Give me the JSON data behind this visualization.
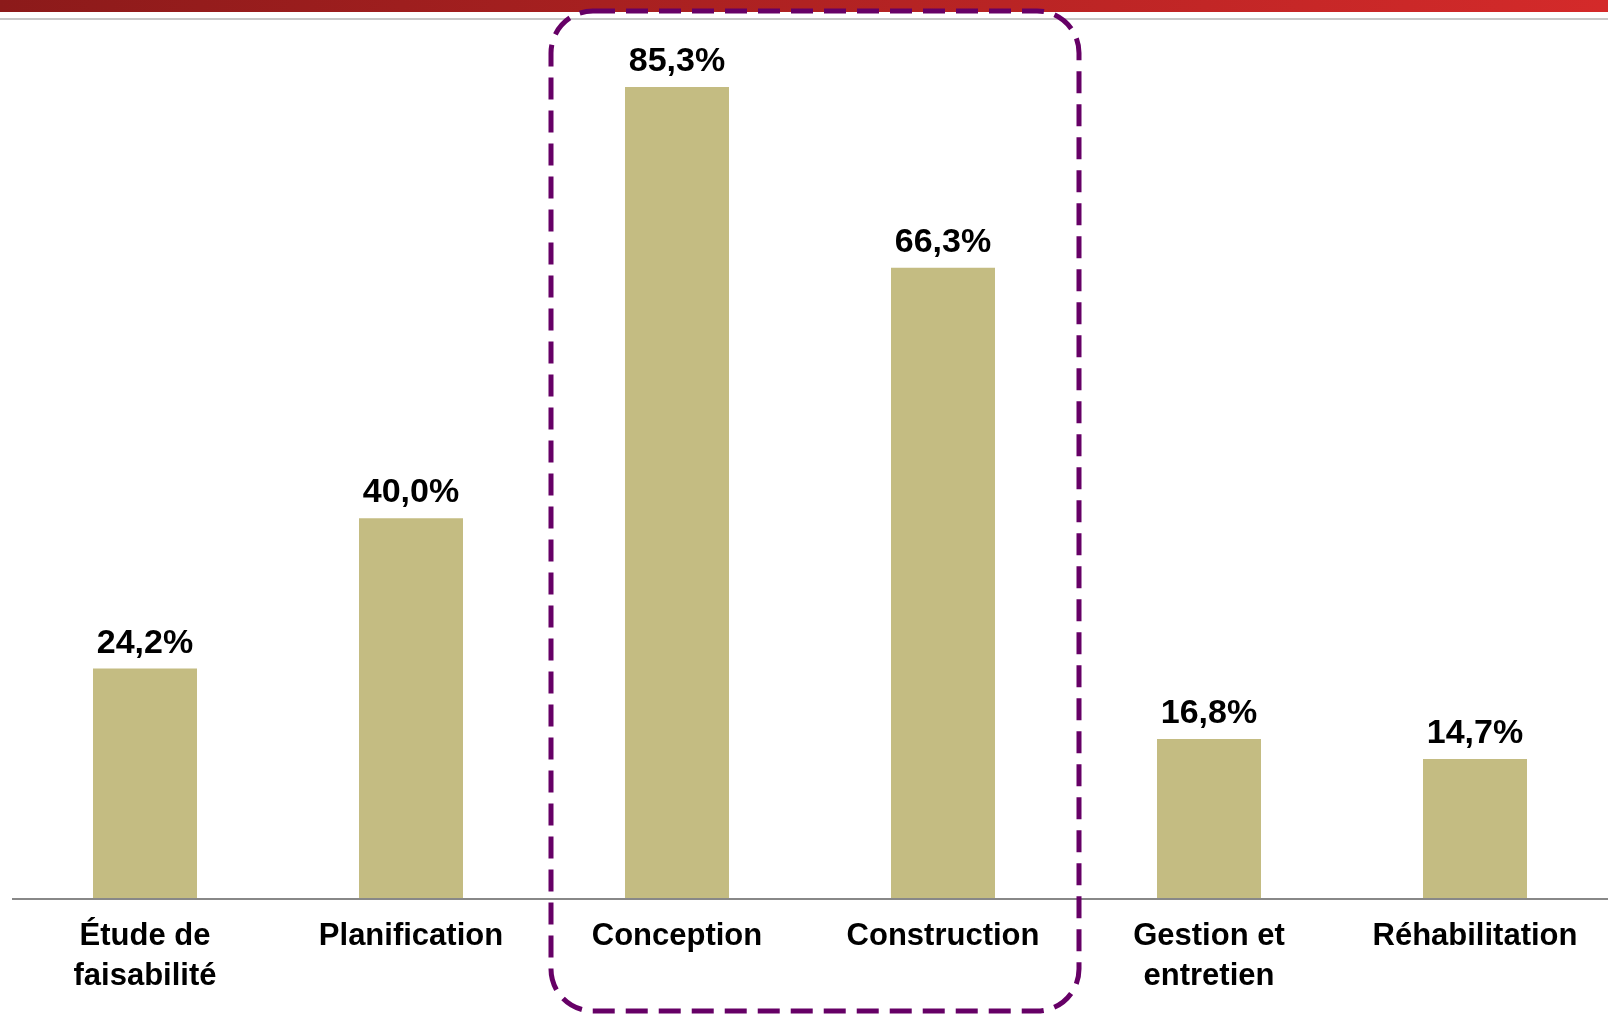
{
  "chart_data": {
    "type": "bar",
    "categories": [
      "Étude de faisabilité",
      "Planification",
      "Conception",
      "Construction",
      "Gestion et entretien",
      "Réhabilitation"
    ],
    "values": [
      24.2,
      40.0,
      85.3,
      66.3,
      16.8,
      14.7
    ],
    "value_labels": [
      "24,2%",
      "40,0%",
      "85,3%",
      "66,3%",
      "16,8%",
      "14,7%"
    ],
    "color": "#c4bc82",
    "tick_labels": "x"
  }
}
